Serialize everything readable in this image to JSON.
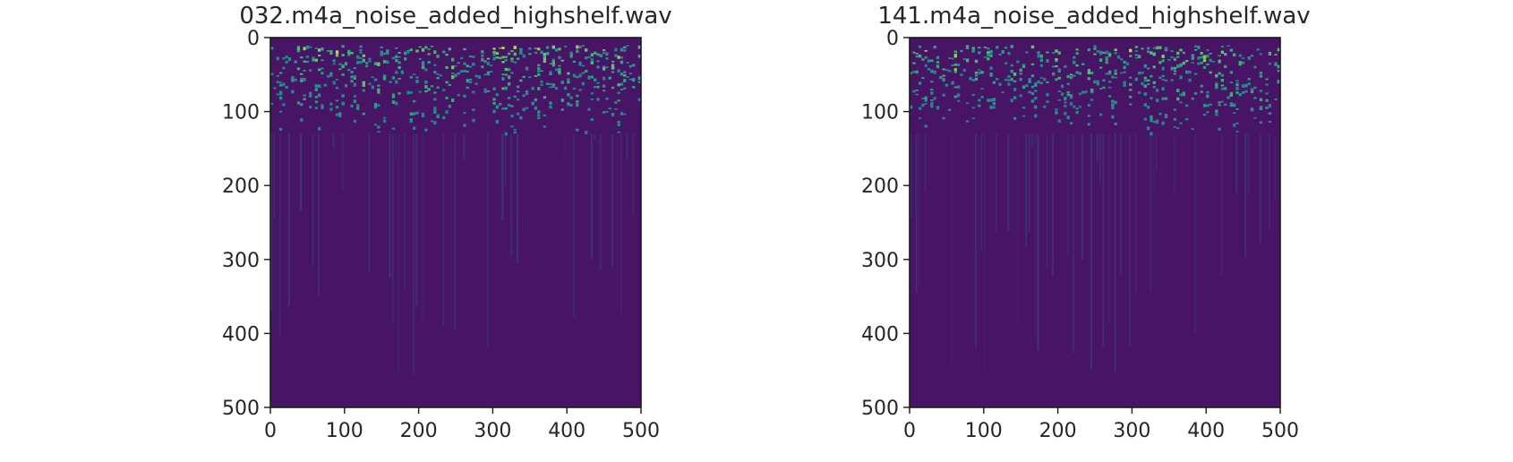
{
  "chart_data": [
    {
      "type": "heatmap",
      "title": "032.m4a_noise_added_highshelf.wav",
      "xlabel": "",
      "ylabel": "",
      "xlim": [
        0,
        500
      ],
      "ylim": [
        500,
        0
      ],
      "xticks": [
        0,
        100,
        200,
        300,
        400,
        500
      ],
      "yticks": [
        0,
        100,
        200,
        300,
        400,
        500
      ],
      "xtick_labels": [
        "0",
        "100",
        "200",
        "300",
        "400",
        "500"
      ],
      "ytick_labels": [
        "0",
        "100",
        "200",
        "300",
        "400",
        "500"
      ],
      "colormap": "viridis",
      "background_color": "#481466",
      "bright_band": [
        10,
        130
      ],
      "seed": 32
    },
    {
      "type": "heatmap",
      "title": "141.m4a_noise_added_highshelf.wav",
      "xlabel": "",
      "ylabel": "",
      "xlim": [
        0,
        500
      ],
      "ylim": [
        500,
        0
      ],
      "xticks": [
        0,
        100,
        200,
        300,
        400,
        500
      ],
      "yticks": [
        0,
        100,
        200,
        300,
        400,
        500
      ],
      "xtick_labels": [
        "0",
        "100",
        "200",
        "300",
        "400",
        "500"
      ],
      "ytick_labels": [
        "0",
        "100",
        "200",
        "300",
        "400",
        "500"
      ],
      "colormap": "viridis",
      "background_color": "#481466",
      "bright_band": [
        10,
        130
      ],
      "seed": 141
    }
  ]
}
